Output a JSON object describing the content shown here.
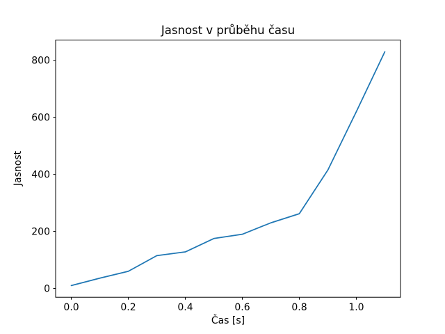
{
  "figure": {
    "background": "#ffffff"
  },
  "chart_data": {
    "type": "line",
    "title": "Jasnost v průběhu času",
    "xlabel": "Čas [s]",
    "ylabel": "Jasnost",
    "x": [
      0.0,
      0.1,
      0.2,
      0.3,
      0.4,
      0.5,
      0.6,
      0.7,
      0.8,
      0.9,
      1.0,
      1.1
    ],
    "values": [
      10,
      36,
      60,
      115,
      128,
      175,
      190,
      230,
      262,
      415,
      620,
      830
    ],
    "xlim": [
      -0.055,
      1.155
    ],
    "ylim": [
      -31,
      871
    ],
    "xticks": {
      "values": [
        0.0,
        0.2,
        0.4,
        0.6,
        0.8,
        1.0
      ],
      "labels": [
        "0.0",
        "0.2",
        "0.4",
        "0.6",
        "0.8",
        "1.0"
      ]
    },
    "yticks": {
      "values": [
        0,
        200,
        400,
        600,
        800
      ],
      "labels": [
        "0",
        "200",
        "400",
        "600",
        "800"
      ]
    },
    "grid": false,
    "legend_position": "none",
    "line_color": "#1f77b4",
    "axis_color": "#000000",
    "text_color": "#000000"
  }
}
